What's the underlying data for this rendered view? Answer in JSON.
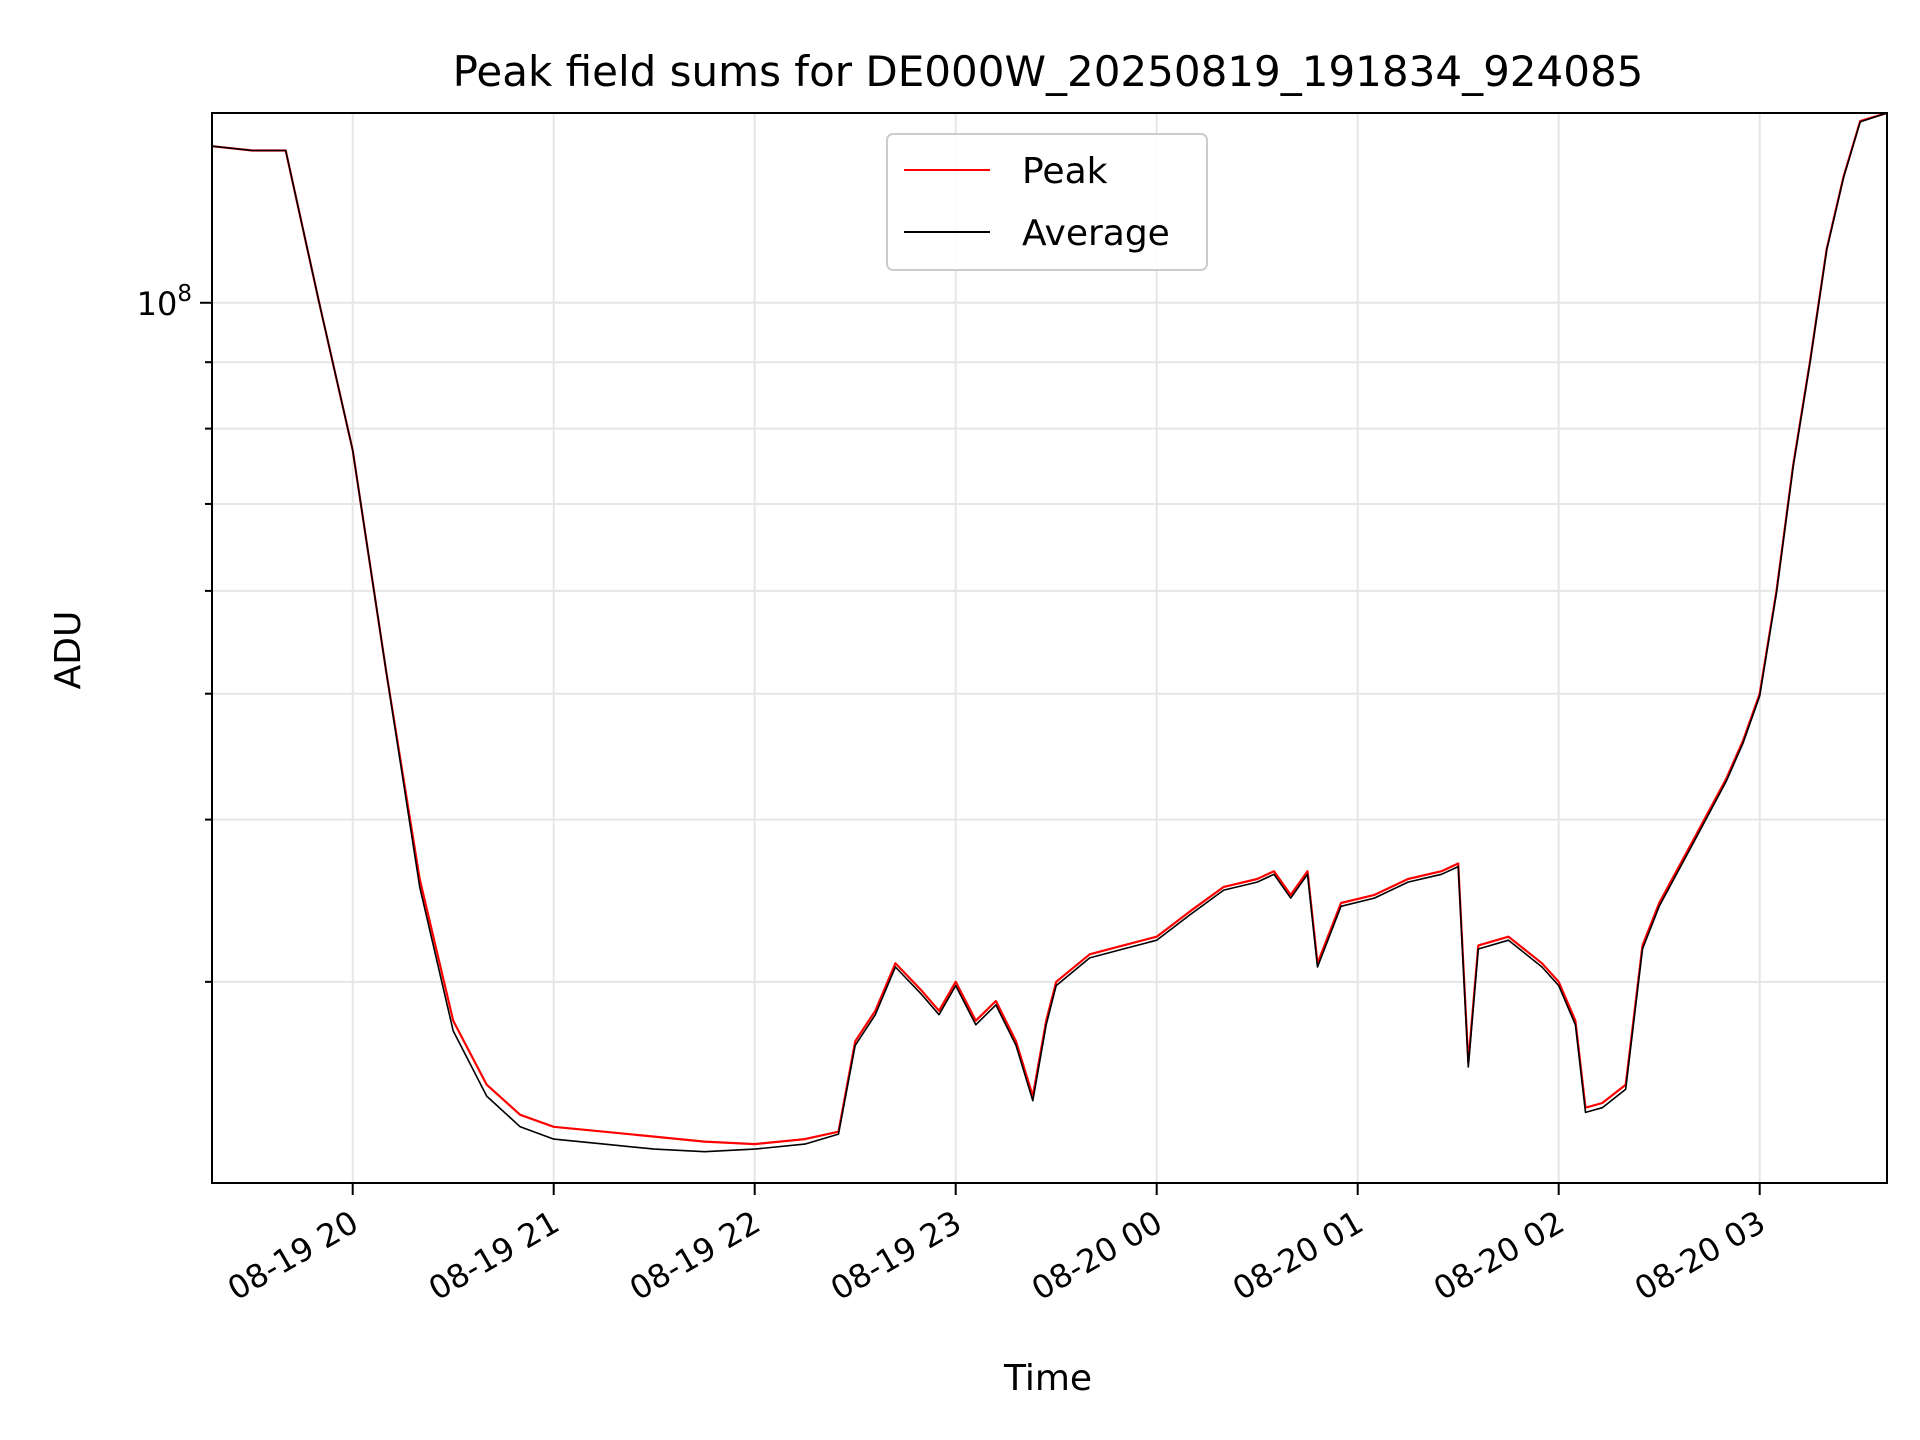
{
  "chart_data": {
    "type": "line",
    "title": "Peak field sums for DE000W_20250819_191834_924085",
    "xlabel": "Time",
    "ylabel": "ADU",
    "yscale": "log",
    "ylim": [
      21000000,
      140000000
    ],
    "xlim": [
      "2025-08-19 19:18",
      "2025-08-20 03:38"
    ],
    "grid": true,
    "legend_position": "top-center",
    "x_ticks": [
      "08-19 20",
      "08-19 21",
      "08-19 22",
      "08-19 23",
      "08-20 00",
      "08-20 01",
      "08-20 02",
      "08-20 03"
    ],
    "y_ticks": [
      {
        "value": 100000000,
        "base": "10",
        "exp": "8"
      }
    ],
    "y_minor_ticks": [
      30000000,
      40000000,
      50000000,
      60000000,
      70000000,
      80000000,
      90000000
    ],
    "series": [
      {
        "name": "Peak",
        "color": "#ff0000",
        "x": [
          "2025-08-19 19:18",
          "2025-08-19 19:30",
          "2025-08-19 19:40",
          "2025-08-19 19:50",
          "2025-08-19 20:00",
          "2025-08-19 20:10",
          "2025-08-19 20:20",
          "2025-08-19 20:30",
          "2025-08-19 20:40",
          "2025-08-19 20:50",
          "2025-08-19 21:00",
          "2025-08-19 21:15",
          "2025-08-19 21:30",
          "2025-08-19 21:45",
          "2025-08-19 22:00",
          "2025-08-19 22:15",
          "2025-08-19 22:25",
          "2025-08-19 22:30",
          "2025-08-19 22:36",
          "2025-08-19 22:42",
          "2025-08-19 22:50",
          "2025-08-19 22:55",
          "2025-08-19 23:00",
          "2025-08-19 23:06",
          "2025-08-19 23:12",
          "2025-08-19 23:18",
          "2025-08-19 23:23",
          "2025-08-19 23:27",
          "2025-08-19 23:30",
          "2025-08-19 23:40",
          "2025-08-19 23:50",
          "2025-08-20 00:00",
          "2025-08-20 00:10",
          "2025-08-20 00:20",
          "2025-08-20 00:30",
          "2025-08-20 00:35",
          "2025-08-20 00:40",
          "2025-08-20 00:45",
          "2025-08-20 00:48",
          "2025-08-20 00:55",
          "2025-08-20 01:05",
          "2025-08-20 01:15",
          "2025-08-20 01:25",
          "2025-08-20 01:30",
          "2025-08-20 01:33",
          "2025-08-20 01:36",
          "2025-08-20 01:45",
          "2025-08-20 01:55",
          "2025-08-20 02:00",
          "2025-08-20 02:05",
          "2025-08-20 02:08",
          "2025-08-20 02:13",
          "2025-08-20 02:20",
          "2025-08-20 02:25",
          "2025-08-20 02:30",
          "2025-08-20 02:40",
          "2025-08-20 02:50",
          "2025-08-20 02:55",
          "2025-08-20 03:00",
          "2025-08-20 03:05",
          "2025-08-20 03:10",
          "2025-08-20 03:15",
          "2025-08-20 03:20",
          "2025-08-20 03:25",
          "2025-08-20 03:30",
          "2025-08-20 03:38"
        ],
        "y": [
          132000000,
          131000000,
          131000000,
          100000000,
          77000000,
          52000000,
          36000000,
          28000000,
          25000000,
          23700000,
          23200000,
          23000000,
          22800000,
          22600000,
          22500000,
          22700000,
          23000000,
          27000000,
          28500000,
          31000000,
          29500000,
          28500000,
          30000000,
          28000000,
          29000000,
          27000000,
          24500000,
          28000000,
          30000000,
          31500000,
          32000000,
          32500000,
          34000000,
          35500000,
          36000000,
          36500000,
          35000000,
          36500000,
          31000000,
          34500000,
          35000000,
          36000000,
          36500000,
          37000000,
          26000000,
          32000000,
          32500000,
          31000000,
          30000000,
          28000000,
          24000000,
          24200000,
          25000000,
          32000000,
          34500000,
          38500000,
          43000000,
          46000000,
          50000000,
          60000000,
          75000000,
          90000000,
          110000000,
          125000000,
          138000000,
          140000000
        ]
      },
      {
        "name": "Average",
        "color": "#000000",
        "x": [
          "2025-08-19 19:18",
          "2025-08-19 19:30",
          "2025-08-19 19:40",
          "2025-08-19 19:50",
          "2025-08-19 20:00",
          "2025-08-19 20:10",
          "2025-08-19 20:20",
          "2025-08-19 20:30",
          "2025-08-19 20:40",
          "2025-08-19 20:50",
          "2025-08-19 21:00",
          "2025-08-19 21:15",
          "2025-08-19 21:30",
          "2025-08-19 21:45",
          "2025-08-19 22:00",
          "2025-08-19 22:15",
          "2025-08-19 22:25",
          "2025-08-19 22:30",
          "2025-08-19 22:36",
          "2025-08-19 22:42",
          "2025-08-19 22:50",
          "2025-08-19 22:55",
          "2025-08-19 23:00",
          "2025-08-19 23:06",
          "2025-08-19 23:12",
          "2025-08-19 23:18",
          "2025-08-19 23:23",
          "2025-08-19 23:27",
          "2025-08-19 23:30",
          "2025-08-19 23:40",
          "2025-08-19 23:50",
          "2025-08-20 00:00",
          "2025-08-20 00:10",
          "2025-08-20 00:20",
          "2025-08-20 00:30",
          "2025-08-20 00:35",
          "2025-08-20 00:40",
          "2025-08-20 00:45",
          "2025-08-20 00:48",
          "2025-08-20 00:55",
          "2025-08-20 01:05",
          "2025-08-20 01:15",
          "2025-08-20 01:25",
          "2025-08-20 01:30",
          "2025-08-20 01:33",
          "2025-08-20 01:36",
          "2025-08-20 01:45",
          "2025-08-20 01:55",
          "2025-08-20 02:00",
          "2025-08-20 02:05",
          "2025-08-20 02:08",
          "2025-08-20 02:13",
          "2025-08-20 02:20",
          "2025-08-20 02:25",
          "2025-08-20 02:30",
          "2025-08-20 02:40",
          "2025-08-20 02:50",
          "2025-08-20 02:55",
          "2025-08-20 03:00",
          "2025-08-20 03:05",
          "2025-08-20 03:10",
          "2025-08-20 03:15",
          "2025-08-20 03:20",
          "2025-08-20 03:25",
          "2025-08-20 03:30",
          "2025-08-20 03:38"
        ],
        "y": [
          132000000,
          131000000,
          131000000,
          100000000,
          77000000,
          52000000,
          35500000,
          27500000,
          24500000,
          23200000,
          22700000,
          22500000,
          22300000,
          22200000,
          22300000,
          22500000,
          22900000,
          26800000,
          28300000,
          30800000,
          29300000,
          28300000,
          29800000,
          27800000,
          28800000,
          26800000,
          24300000,
          27800000,
          29800000,
          31300000,
          31800000,
          32300000,
          33800000,
          35300000,
          35800000,
          36300000,
          34800000,
          36300000,
          30800000,
          34300000,
          34800000,
          35800000,
          36300000,
          36800000,
          25800000,
          31800000,
          32300000,
          30800000,
          29800000,
          27800000,
          23800000,
          24000000,
          24800000,
          31800000,
          34300000,
          38300000,
          42800000,
          45800000,
          49800000,
          59800000,
          74800000,
          89800000,
          109800000,
          124800000,
          137800000,
          140000000
        ]
      }
    ]
  }
}
